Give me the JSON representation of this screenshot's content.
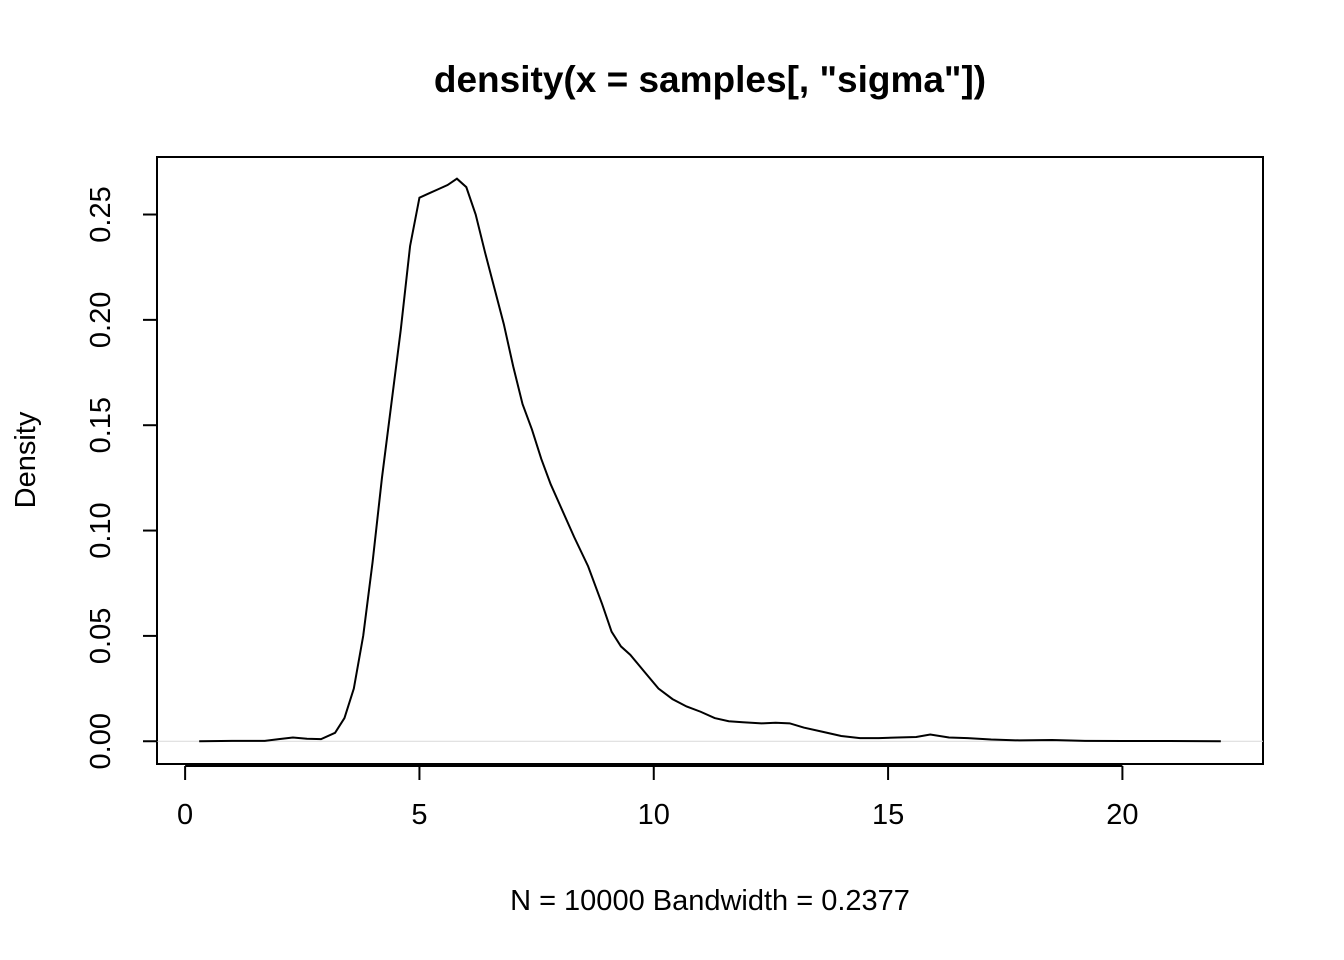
{
  "chart_data": {
    "type": "line",
    "title": "density(x = samples[, \"sigma\"])",
    "xlabel": "N = 10000   Bandwidth = 0.2377",
    "ylabel": "Density",
    "xlim": [
      -0.6,
      23.0
    ],
    "ylim": [
      -0.0108,
      0.2773
    ],
    "x_ticks": [
      0,
      5,
      10,
      15,
      20
    ],
    "x_tick_labels": [
      "0",
      "5",
      "10",
      "15",
      "20"
    ],
    "y_ticks": [
      0.0,
      0.05,
      0.1,
      0.15,
      0.2,
      0.25
    ],
    "y_tick_labels": [
      "0.00",
      "0.05",
      "0.10",
      "0.15",
      "0.20",
      "0.25"
    ],
    "grid": false,
    "zero_line": true,
    "series": [
      {
        "x": [
          0.3,
          1.0,
          1.7,
          2.0,
          2.3,
          2.6,
          2.9,
          3.2,
          3.4,
          3.6,
          3.8,
          4.0,
          4.2,
          4.4,
          4.6,
          4.8,
          5.0,
          5.2,
          5.4,
          5.6,
          5.8,
          6.0,
          6.2,
          6.4,
          6.6,
          6.8,
          7.0,
          7.2,
          7.4,
          7.6,
          7.8,
          8.0,
          8.3,
          8.6,
          8.9,
          9.1,
          9.3,
          9.5,
          9.8,
          10.1,
          10.4,
          10.7,
          11.0,
          11.3,
          11.6,
          11.9,
          12.3,
          12.6,
          12.9,
          13.2,
          13.6,
          14.0,
          14.4,
          14.8,
          15.2,
          15.6,
          15.9,
          16.3,
          16.7,
          17.2,
          17.8,
          18.5,
          19.2,
          20.0,
          21.0,
          22.1
        ],
        "y": [
          0.0,
          0.0002,
          0.0002,
          0.001,
          0.0018,
          0.0012,
          0.001,
          0.004,
          0.011,
          0.025,
          0.05,
          0.085,
          0.125,
          0.16,
          0.195,
          0.235,
          0.258,
          0.26,
          0.262,
          0.264,
          0.267,
          0.263,
          0.25,
          0.232,
          0.215,
          0.198,
          0.178,
          0.16,
          0.148,
          0.134,
          0.122,
          0.112,
          0.097,
          0.083,
          0.065,
          0.052,
          0.045,
          0.041,
          0.033,
          0.025,
          0.02,
          0.0165,
          0.014,
          0.011,
          0.0095,
          0.009,
          0.0085,
          0.0088,
          0.0085,
          0.0065,
          0.0045,
          0.0025,
          0.0015,
          0.0015,
          0.0018,
          0.002,
          0.0032,
          0.0018,
          0.0015,
          0.0008,
          0.0004,
          0.0006,
          0.0002,
          0.0001,
          0.0001,
          0.0
        ]
      }
    ]
  }
}
